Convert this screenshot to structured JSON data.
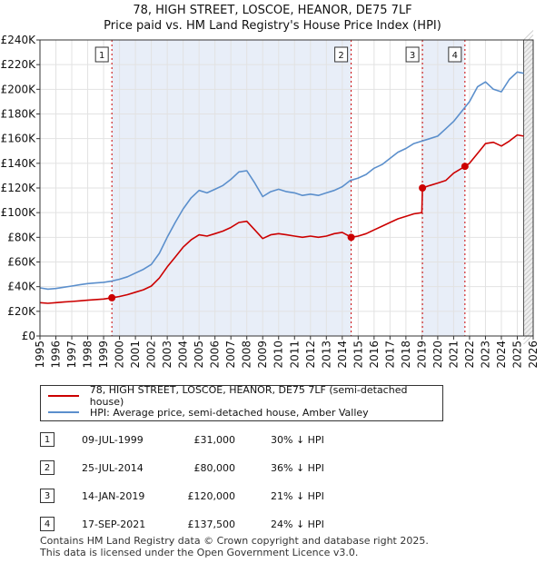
{
  "chart_data": {
    "type": "line",
    "title": "78, HIGH STREET, LOSCOE, HEANOR, DE75 7LF",
    "subtitle": "Price paid vs. HM Land Registry's House Price Index (HPI)",
    "xlim": [
      1995,
      2026
    ],
    "ylim": [
      0,
      240000
    ],
    "ytick_values": [
      0,
      20000,
      40000,
      60000,
      80000,
      100000,
      120000,
      140000,
      160000,
      180000,
      200000,
      220000,
      240000
    ],
    "ytick_labels": [
      "£0",
      "£20K",
      "£40K",
      "£60K",
      "£80K",
      "£100K",
      "£120K",
      "£140K",
      "£160K",
      "£180K",
      "£200K",
      "£220K",
      "£240K"
    ],
    "xtick_labels": [
      "1995",
      "1996",
      "1997",
      "1998",
      "1999",
      "2000",
      "2001",
      "2002",
      "2003",
      "2004",
      "2005",
      "2006",
      "2007",
      "2008",
      "2009",
      "2010",
      "2011",
      "2012",
      "2013",
      "2014",
      "2015",
      "2016",
      "2017",
      "2018",
      "2019",
      "2020",
      "2021",
      "2022",
      "2023",
      "2024",
      "2025",
      "2026"
    ],
    "grid": true,
    "legend": [
      {
        "label": "78, HIGH STREET, LOSCOE, HEANOR, DE75 7LF (semi-detached house)",
        "color": "#cc0000"
      },
      {
        "label": "HPI: Average price, semi-detached house, Amber Valley",
        "color": "#5b8fcc"
      }
    ],
    "series": [
      {
        "name": "HPI: Average price, semi-detached house, Amber Valley",
        "color": "#5b8fcc",
        "x": [
          1995.0,
          1995.5,
          1996.0,
          1996.5,
          1997.0,
          1997.5,
          1998.0,
          1998.5,
          1999.0,
          1999.5,
          2000.0,
          2000.5,
          2001.0,
          2001.5,
          2002.0,
          2002.5,
          2003.0,
          2003.5,
          2004.0,
          2004.5,
          2005.0,
          2005.5,
          2006.0,
          2006.5,
          2007.0,
          2007.5,
          2008.0,
          2008.5,
          2009.0,
          2009.5,
          2010.0,
          2010.5,
          2011.0,
          2011.5,
          2012.0,
          2012.5,
          2013.0,
          2013.5,
          2014.0,
          2014.5,
          2015.0,
          2015.5,
          2016.0,
          2016.5,
          2017.0,
          2017.5,
          2018.0,
          2018.5,
          2019.0,
          2019.5,
          2020.0,
          2020.5,
          2021.0,
          2021.5,
          2022.0,
          2022.5,
          2023.0,
          2023.5,
          2024.0,
          2024.5,
          2025.0,
          2025.4
        ],
        "values": [
          39000,
          38000,
          38500,
          39500,
          40500,
          41500,
          42500,
          43000,
          43500,
          44500,
          46000,
          48000,
          51000,
          54000,
          58000,
          67000,
          80000,
          92000,
          103000,
          112000,
          118000,
          116000,
          119000,
          122000,
          127000,
          133000,
          134000,
          124000,
          113000,
          117000,
          119000,
          117000,
          116000,
          114000,
          115000,
          114000,
          116000,
          118000,
          121000,
          126000,
          128000,
          131000,
          136000,
          139000,
          144000,
          149000,
          152000,
          156000,
          158000,
          160000,
          162000,
          168000,
          174000,
          182000,
          190000,
          202000,
          206000,
          200000,
          198000,
          208000,
          214000,
          213000
        ]
      },
      {
        "name": "78, HIGH STREET, LOSCOE, HEANOR, DE75 7LF (semi-detached house)",
        "color": "#cc0000",
        "x": [
          1995.0,
          1995.5,
          1996.0,
          1996.5,
          1997.0,
          1997.5,
          1998.0,
          1998.5,
          1999.0,
          1999.52,
          2000.0,
          2000.5,
          2001.0,
          2001.5,
          2002.0,
          2002.5,
          2003.0,
          2003.5,
          2004.0,
          2004.5,
          2005.0,
          2005.5,
          2006.0,
          2006.5,
          2007.0,
          2007.5,
          2008.0,
          2008.5,
          2009.0,
          2009.5,
          2010.0,
          2010.5,
          2011.0,
          2011.5,
          2012.0,
          2012.5,
          2013.0,
          2013.5,
          2014.0,
          2014.56,
          2015.0,
          2015.5,
          2016.0,
          2016.5,
          2017.0,
          2017.5,
          2018.0,
          2018.5,
          2019.0,
          2019.04,
          2019.5,
          2020.0,
          2020.5,
          2021.0,
          2021.71,
          2022.0,
          2022.5,
          2023.0,
          2023.5,
          2024.0,
          2024.5,
          2025.0,
          2025.4
        ],
        "values": [
          27000,
          26500,
          27000,
          27500,
          28000,
          28500,
          29000,
          29500,
          30000,
          31000,
          32000,
          33500,
          35500,
          37500,
          40500,
          47000,
          56000,
          64000,
          72000,
          78000,
          82000,
          81000,
          83000,
          85000,
          88000,
          92000,
          93000,
          86000,
          79000,
          82000,
          83000,
          82000,
          81000,
          80000,
          81000,
          80000,
          81000,
          83000,
          84000,
          80000,
          81000,
          83000,
          86000,
          89000,
          92000,
          95000,
          97000,
          99000,
          100000,
          120000,
          122000,
          124000,
          126000,
          132000,
          137500,
          140000,
          148000,
          156000,
          157000,
          154000,
          158000,
          163000,
          162000
        ]
      }
    ],
    "sales": [
      {
        "id": "1",
        "year": 1999.52,
        "price_value": 31000,
        "date": "09-JUL-1999",
        "price": "£31,000",
        "hpi": "30% ↓ HPI"
      },
      {
        "id": "2",
        "year": 2014.56,
        "price_value": 80000,
        "date": "25-JUL-2014",
        "price": "£80,000",
        "hpi": "36% ↓ HPI"
      },
      {
        "id": "3",
        "year": 2019.04,
        "price_value": 120000,
        "date": "14-JAN-2019",
        "price": "£120,000",
        "hpi": "21% ↓ HPI"
      },
      {
        "id": "4",
        "year": 2021.71,
        "price_value": 137500,
        "date": "17-SEP-2021",
        "price": "£137,500",
        "hpi": "24% ↓ HPI"
      }
    ],
    "shaded_spans": [
      [
        1999.52,
        2014.56
      ],
      [
        2019.04,
        2021.71
      ]
    ],
    "forecast_start": 2025.4
  },
  "footer": {
    "line1": "Contains HM Land Registry data © Crown copyright and database right 2025.",
    "line2": "This data is licensed under the Open Government Licence v3.0."
  }
}
